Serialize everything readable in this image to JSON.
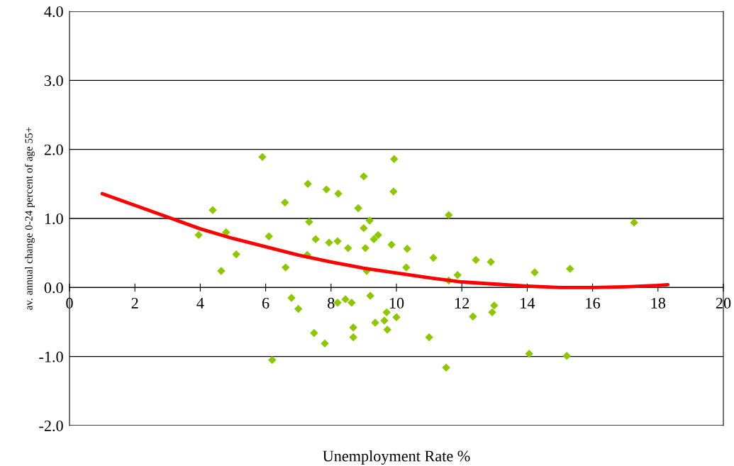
{
  "chart_data": {
    "type": "scatter",
    "xlabel": "Unemployment Rate %",
    "ylabel": "av. annual change 0-24 percent of age 55+",
    "xlim": [
      0,
      20
    ],
    "xticks": [
      0,
      2,
      4,
      6,
      8,
      10,
      12,
      14,
      16,
      18,
      20
    ],
    "ylim": [
      -2.0,
      4.0
    ],
    "yticks": [
      {
        "value": -2,
        "label": "-2.0"
      },
      {
        "value": -1,
        "label": "-1.0"
      },
      {
        "value": 0,
        "label": "0.0"
      },
      {
        "value": 1,
        "label": "1.0"
      },
      {
        "value": 2,
        "label": "2.0"
      },
      {
        "value": 3,
        "label": "3.0"
      },
      {
        "value": 4,
        "label": "4.0"
      }
    ],
    "grid": "y",
    "legend": false,
    "series": [
      {
        "color": "#8cc800",
        "marker": "diamond",
        "x": [
          3.95,
          4.38,
          4.79,
          4.64,
          5.1,
          5.9,
          6.1,
          6.2,
          6.59,
          6.61,
          6.79,
          7.0,
          7.29,
          7.33,
          7.27,
          7.53,
          7.48,
          7.86,
          7.94,
          7.81,
          8.22,
          8.2,
          8.2,
          8.44,
          8.52,
          8.63,
          8.68,
          8.68,
          8.83,
          9.0,
          9.0,
          9.05,
          9.09,
          9.18,
          9.2,
          9.31,
          9.35,
          9.44,
          9.63,
          9.7,
          9.72,
          9.85,
          9.93,
          9.91,
          10.0,
          10.33,
          10.3,
          11.0,
          11.13,
          11.6,
          11.6,
          11.87,
          11.52,
          12.34,
          12.43,
          12.89,
          12.99,
          12.93,
          14.23,
          14.06,
          15.31,
          15.21,
          17.27
        ],
        "values": [
          0.76,
          1.12,
          0.8,
          0.24,
          0.48,
          1.89,
          0.74,
          -1.05,
          1.23,
          0.29,
          -0.15,
          -0.31,
          1.5,
          0.95,
          0.47,
          0.7,
          -0.66,
          1.42,
          0.65,
          -0.81,
          1.36,
          0.67,
          -0.22,
          -0.17,
          0.57,
          -0.22,
          -0.58,
          -0.72,
          1.15,
          1.61,
          0.86,
          0.57,
          0.24,
          0.97,
          -0.12,
          0.7,
          -0.51,
          0.76,
          -0.48,
          -0.36,
          -0.61,
          0.62,
          1.86,
          1.39,
          -0.43,
          0.56,
          0.29,
          -0.72,
          0.43,
          1.05,
          0.1,
          0.18,
          -1.16,
          -0.42,
          0.4,
          0.37,
          -0.26,
          -0.36,
          0.22,
          -0.96,
          0.27,
          -0.99,
          0.94
        ]
      },
      {
        "type": "line",
        "color": "#ff0000",
        "marker": "none",
        "line_style": "solid",
        "x": [
          1,
          2,
          3,
          4,
          5,
          6,
          7,
          8,
          9,
          10,
          11,
          12,
          13,
          14,
          15,
          16,
          17,
          18,
          18.3
        ],
        "values": [
          1.36,
          1.19,
          1.02,
          0.85,
          0.71,
          0.59,
          0.47,
          0.37,
          0.28,
          0.21,
          0.14,
          0.08,
          0.05,
          0.02,
          0.0,
          0.0,
          0.01,
          0.03,
          0.04
        ]
      }
    ]
  }
}
